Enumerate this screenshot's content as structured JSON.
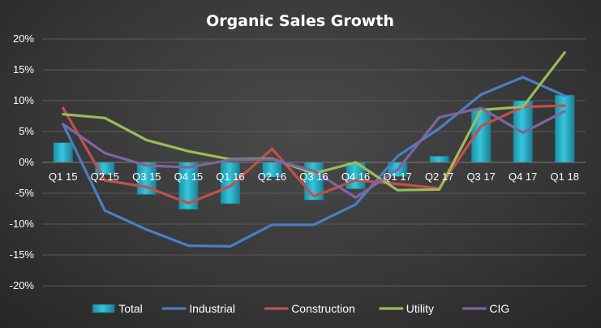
{
  "chart_data": {
    "type": "bar",
    "title": "Organic Sales Growth",
    "categories": [
      "Q1 15",
      "Q2 15",
      "Q3 15",
      "Q4 15",
      "Q1 16",
      "Q2 16",
      "Q3 16",
      "Q4 16",
      "Q1 17",
      "Q2 17",
      "Q3 17",
      "Q4 17",
      "Q1 18"
    ],
    "ylim": [
      -20,
      20
    ],
    "yticks": [
      -20,
      -15,
      -10,
      -5,
      0,
      5,
      10,
      15,
      20
    ],
    "ytick_labels": [
      "-20%",
      "-15%",
      "-10%",
      "-5%",
      "0%",
      "5%",
      "10%",
      "15%",
      "20%"
    ],
    "grid": true,
    "legend_position": "bottom",
    "bar_series": {
      "name": "Total",
      "color": "#35c6dc",
      "values": [
        3.2,
        -2.0,
        -5.2,
        -7.6,
        -6.7,
        -2.4,
        -6.1,
        -4.3,
        -2.3,
        1.0,
        8.5,
        10.0,
        10.9
      ]
    },
    "series": [
      {
        "name": "Industrial",
        "color": "#4a7ec4",
        "values": [
          6.2,
          -7.8,
          -10.9,
          -13.5,
          -13.6,
          -10.1,
          -10.1,
          -6.8,
          1.0,
          5.5,
          11.0,
          13.8,
          10.8
        ]
      },
      {
        "name": "Construction",
        "color": "#c0504d",
        "values": [
          8.8,
          -2.9,
          -4.0,
          -6.6,
          -3.9,
          2.2,
          -5.5,
          -2.9,
          -3.5,
          -4.2,
          5.9,
          9.0,
          9.2
        ]
      },
      {
        "name": "Utility",
        "color": "#9bbb59",
        "values": [
          7.8,
          7.2,
          3.6,
          1.8,
          0.5,
          0.6,
          -1.8,
          0.0,
          -4.5,
          -4.4,
          8.5,
          9.0,
          17.8
        ]
      },
      {
        "name": "CIG",
        "color": "#8064a2",
        "values": [
          6.2,
          1.5,
          -0.5,
          -0.8,
          0.4,
          0.5,
          -1.4,
          -5.7,
          -1.2,
          7.3,
          8.8,
          4.8,
          8.3
        ]
      }
    ]
  }
}
